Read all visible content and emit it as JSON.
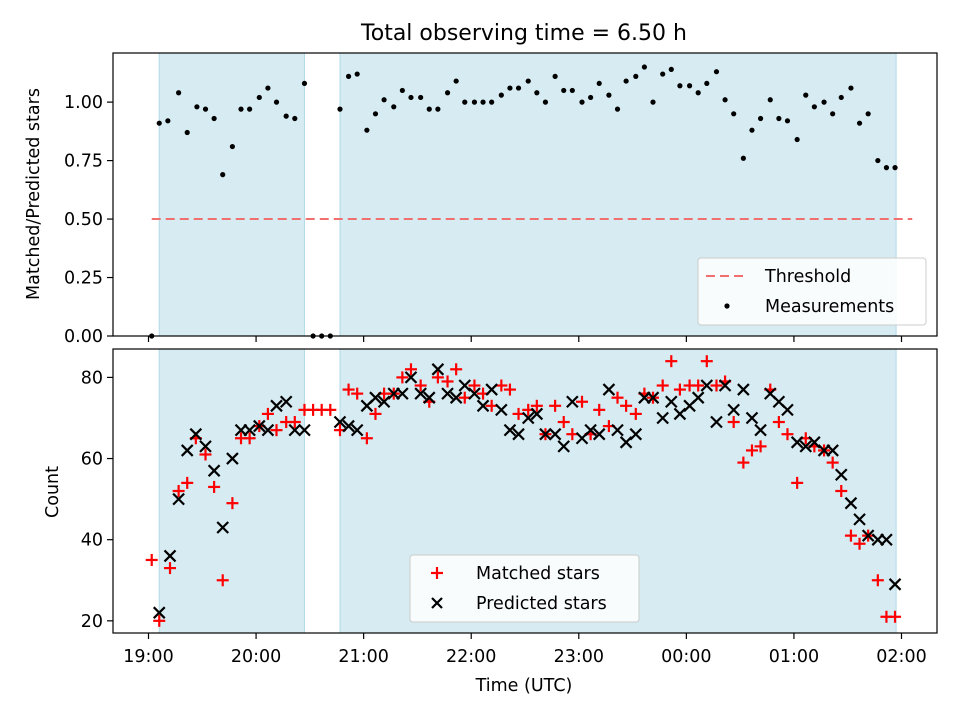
{
  "figure": {
    "title": "Total observing time = 6.50 h"
  },
  "chart_data": [
    {
      "type": "scatter",
      "title": "Total observing time = 6.50 h",
      "ylabel": "Matched/Predicted stars",
      "xlabel": "",
      "x_unit": "hours since 19:00 UTC",
      "xlim": [
        -0.33,
        7.33
      ],
      "ylim": [
        0.0,
        1.21
      ],
      "yticks": [
        0.0,
        0.25,
        0.5,
        0.75,
        1.0
      ],
      "ytick_labels": [
        "0.00",
        "0.25",
        "0.50",
        "0.75",
        "1.00"
      ],
      "shaded_intervals": [
        [
          0.1,
          1.45
        ],
        [
          1.78,
          6.95
        ]
      ],
      "threshold": {
        "name": "Threshold",
        "value": 0.5,
        "x_range": [
          0.03,
          7.1
        ],
        "color": "#f07070"
      },
      "series": [
        {
          "name": "Measurements",
          "color": "#000000",
          "x": [
            0.03,
            0.1,
            0.18,
            0.28,
            0.36,
            0.45,
            0.53,
            0.61,
            0.69,
            0.78,
            0.86,
            0.94,
            1.03,
            1.11,
            1.19,
            1.28,
            1.36,
            1.45,
            1.53,
            1.61,
            1.69,
            1.78,
            1.86,
            1.94,
            2.03,
            2.11,
            2.19,
            2.28,
            2.36,
            2.44,
            2.53,
            2.61,
            2.69,
            2.78,
            2.86,
            2.94,
            3.03,
            3.11,
            3.19,
            3.28,
            3.36,
            3.44,
            3.53,
            3.61,
            3.69,
            3.78,
            3.86,
            3.94,
            4.03,
            4.11,
            4.19,
            4.28,
            4.36,
            4.44,
            4.53,
            4.61,
            4.69,
            4.78,
            4.86,
            4.94,
            5.03,
            5.11,
            5.19,
            5.28,
            5.36,
            5.44,
            5.53,
            5.61,
            5.69,
            5.78,
            5.86,
            5.94,
            6.03,
            6.11,
            6.19,
            6.28,
            6.36,
            6.44,
            6.53,
            6.61,
            6.69,
            6.78,
            6.86,
            6.94
          ],
          "y": [
            0.0,
            0.91,
            0.92,
            1.04,
            0.87,
            0.98,
            0.97,
            0.93,
            0.69,
            0.81,
            0.97,
            0.97,
            1.02,
            1.06,
            1.0,
            0.94,
            0.93,
            1.08,
            0.0,
            0.0,
            0.0,
            0.97,
            1.11,
            1.12,
            0.88,
            0.95,
            1.01,
            0.98,
            1.05,
            1.02,
            1.02,
            0.97,
            0.97,
            1.04,
            1.09,
            1.0,
            1.0,
            1.0,
            1.0,
            1.03,
            1.06,
            1.06,
            1.09,
            1.04,
            1.0,
            1.11,
            1.05,
            1.05,
            1.0,
            1.02,
            1.08,
            1.03,
            0.97,
            1.09,
            1.11,
            1.15,
            1.0,
            1.12,
            1.14,
            1.07,
            1.07,
            1.04,
            1.08,
            1.13,
            1.01,
            0.95,
            0.76,
            0.88,
            0.93,
            1.01,
            0.93,
            0.92,
            0.84,
            1.03,
            0.98,
            1.0,
            0.95,
            1.02,
            1.06,
            0.91,
            0.95,
            0.75,
            0.72,
            0.72
          ]
        }
      ],
      "legend": {
        "placement": "lower right",
        "entries": [
          "Threshold",
          "Measurements"
        ]
      }
    },
    {
      "type": "scatter",
      "title": "",
      "xlabel": "Time (UTC)",
      "ylabel": "Count",
      "x_unit": "hours since 19:00 UTC",
      "xlim": [
        -0.33,
        7.33
      ],
      "ylim": [
        17,
        87
      ],
      "yticks": [
        20,
        40,
        60,
        80
      ],
      "xtick_labels": [
        "19:00",
        "20:00",
        "21:00",
        "22:00",
        "23:00",
        "00:00",
        "01:00",
        "02:00"
      ],
      "shaded_intervals": [
        [
          0.1,
          1.45
        ],
        [
          1.78,
          6.95
        ]
      ],
      "series": [
        {
          "name": "Matched stars",
          "marker": "plus",
          "color": "#ff0000",
          "x": [
            0.03,
            0.1,
            0.2,
            0.28,
            0.36,
            0.44,
            0.53,
            0.61,
            0.69,
            0.78,
            0.86,
            0.94,
            1.03,
            1.11,
            1.19,
            1.28,
            1.36,
            1.45,
            1.53,
            1.61,
            1.69,
            1.78,
            1.86,
            1.94,
            2.03,
            2.11,
            2.19,
            2.28,
            2.36,
            2.44,
            2.53,
            2.61,
            2.69,
            2.78,
            2.86,
            2.94,
            3.03,
            3.11,
            3.19,
            3.28,
            3.36,
            3.44,
            3.53,
            3.61,
            3.69,
            3.78,
            3.86,
            3.94,
            4.03,
            4.11,
            4.19,
            4.28,
            4.36,
            4.44,
            4.53,
            4.61,
            4.69,
            4.78,
            4.86,
            4.94,
            5.03,
            5.11,
            5.19,
            5.28,
            5.36,
            5.44,
            5.53,
            5.61,
            5.69,
            5.78,
            5.86,
            5.94,
            6.03,
            6.11,
            6.19,
            6.28,
            6.36,
            6.44,
            6.53,
            6.61,
            6.69,
            6.78,
            6.86,
            6.94
          ],
          "y": [
            35,
            20,
            33,
            52,
            54,
            65,
            61,
            53,
            30,
            49,
            65,
            65,
            68,
            71,
            67,
            69,
            69,
            72,
            72,
            72,
            72,
            67,
            77,
            76,
            65,
            71,
            76,
            76,
            80,
            82,
            78,
            74,
            80,
            79,
            82,
            75,
            78,
            76,
            73,
            78,
            77,
            71,
            72,
            73,
            66,
            73,
            69,
            66,
            74,
            66,
            72,
            68,
            75,
            73,
            71,
            76,
            75,
            78,
            84,
            77,
            78,
            78,
            84,
            78,
            79,
            69,
            59,
            62,
            63,
            77,
            69,
            66,
            54,
            65,
            63,
            62,
            59,
            52,
            41,
            39,
            41,
            30,
            21,
            21
          ]
        },
        {
          "name": "Predicted stars",
          "marker": "x",
          "color": "#000000",
          "x": [
            0.1,
            0.2,
            0.28,
            0.36,
            0.44,
            0.53,
            0.61,
            0.69,
            0.78,
            0.86,
            0.94,
            1.03,
            1.11,
            1.19,
            1.28,
            1.36,
            1.45,
            1.78,
            1.86,
            1.94,
            2.03,
            2.11,
            2.19,
            2.28,
            2.36,
            2.44,
            2.53,
            2.61,
            2.69,
            2.78,
            2.86,
            2.94,
            3.03,
            3.11,
            3.19,
            3.28,
            3.36,
            3.44,
            3.53,
            3.61,
            3.69,
            3.78,
            3.86,
            3.94,
            4.03,
            4.11,
            4.19,
            4.28,
            4.36,
            4.44,
            4.53,
            4.61,
            4.69,
            4.78,
            4.86,
            4.94,
            5.03,
            5.11,
            5.19,
            5.28,
            5.36,
            5.44,
            5.53,
            5.61,
            5.69,
            5.78,
            5.86,
            5.94,
            6.03,
            6.11,
            6.19,
            6.28,
            6.36,
            6.44,
            6.53,
            6.61,
            6.69,
            6.78,
            6.86,
            6.94
          ],
          "y": [
            22,
            36,
            50,
            62,
            66,
            63,
            57,
            43,
            60,
            67,
            67,
            68,
            67,
            73,
            74,
            67,
            67,
            69,
            68,
            67,
            73,
            75,
            74,
            76,
            76,
            80,
            76,
            75,
            82,
            76,
            75,
            78,
            76,
            73,
            77,
            72,
            67,
            66,
            70,
            71,
            66,
            66,
            63,
            74,
            65,
            67,
            66,
            77,
            67,
            64,
            66,
            75,
            75,
            70,
            74,
            71,
            73,
            75,
            78,
            69,
            78,
            72,
            77,
            70,
            67,
            76,
            74,
            72,
            64,
            63,
            64,
            62,
            62,
            56,
            49,
            45,
            41,
            40,
            40,
            29
          ]
        }
      ],
      "legend": {
        "placement": "lower center",
        "entries": [
          "Matched stars",
          "Predicted stars"
        ]
      }
    }
  ]
}
